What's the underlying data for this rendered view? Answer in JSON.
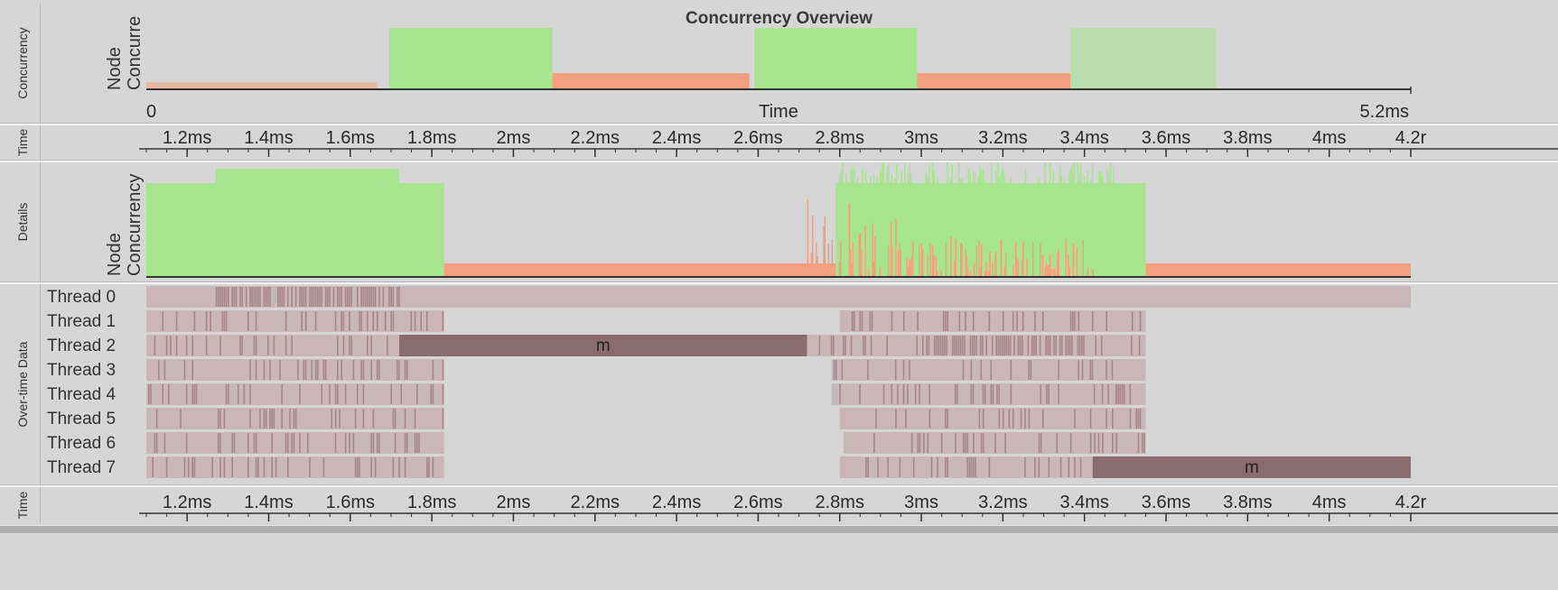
{
  "overview": {
    "side_label": "Concurrency",
    "title": "Concurrency Overview",
    "ylabel_1": "Node",
    "ylabel_2": "Concurre",
    "axis_start": "0",
    "axis_label": "Time",
    "axis_end": "5.2ms"
  },
  "time_axis_top": {
    "side_label": "Time"
  },
  "details": {
    "side_label": "Details",
    "ylabel_1": "Node",
    "ylabel_2": "Concurrency"
  },
  "threads_section": {
    "side_label": "Over-time Data",
    "threads": [
      "Thread 0",
      "Thread 1",
      "Thread 2",
      "Thread 3",
      "Thread 4",
      "Thread 5",
      "Thread 6",
      "Thread 7"
    ],
    "block_label": "m"
  },
  "time_axis_bottom": {
    "side_label": "Time"
  },
  "colors": {
    "green": "#a8e58f",
    "orange": "#f4a080",
    "thread_bg": "#c9b6b9",
    "thread_dark": "#8a6b70",
    "thread_mark": "#a7868b",
    "background": "#d6d6d6"
  },
  "chart_data": [
    {
      "type": "area",
      "name": "overview",
      "x_range_ms": [
        0,
        5.2
      ],
      "xlabel": "Time",
      "ylabel": "Node Concurrency",
      "series": [
        {
          "color": "green",
          "segments_ms": [
            [
              1.0,
              1.67
            ],
            [
              2.5,
              3.17
            ],
            [
              3.8,
              4.4
            ]
          ]
        },
        {
          "color": "orange",
          "segments_ms": [
            [
              0.0,
              0.95
            ],
            [
              1.67,
              2.48
            ],
            [
              3.17,
              3.8
            ]
          ]
        }
      ]
    },
    {
      "type": "axis",
      "name": "time-axis",
      "ticks": [
        "1.2ms",
        "1.4ms",
        "1.6ms",
        "1.8ms",
        "2ms",
        "2.2ms",
        "2.4ms",
        "2.6ms",
        "2.8ms",
        "3ms",
        "3.2ms",
        "3.4ms",
        "3.6ms",
        "3.8ms",
        "4ms",
        "4.2r"
      ],
      "tick_values_ms": [
        1.2,
        1.4,
        1.6,
        1.8,
        2.0,
        2.2,
        2.4,
        2.6,
        2.8,
        3.0,
        3.2,
        3.4,
        3.6,
        3.8,
        4.0,
        4.2
      ],
      "range_ms": [
        1.1,
        4.2
      ]
    },
    {
      "type": "area",
      "name": "details",
      "x_range_ms": [
        1.1,
        4.2
      ],
      "ylabel": "Node Concurrency",
      "series": [
        {
          "color": "green",
          "segments_ms": [
            [
              1.1,
              1.83
            ],
            [
              2.79,
              3.55
            ]
          ]
        },
        {
          "color": "orange",
          "segments_ms": [
            [
              1.83,
              2.79
            ],
            [
              3.55,
              4.2
            ]
          ]
        }
      ]
    },
    {
      "type": "gantt",
      "name": "threads",
      "x_range_ms": [
        1.1,
        4.2
      ],
      "rows": [
        {
          "thread": "Thread 0",
          "active_ms": [
            [
              1.1,
              4.2
            ]
          ]
        },
        {
          "thread": "Thread 1",
          "active_ms": [
            [
              1.1,
              1.83
            ],
            [
              2.8,
              3.55
            ]
          ]
        },
        {
          "thread": "Thread 2",
          "active_ms": [
            [
              1.1,
              1.72
            ],
            [
              2.72,
              3.55
            ]
          ],
          "blocks": [
            {
              "label": "m",
              "ms": [
                1.72,
                2.72
              ]
            }
          ]
        },
        {
          "thread": "Thread 3",
          "active_ms": [
            [
              1.1,
              1.83
            ],
            [
              2.78,
              3.55
            ]
          ]
        },
        {
          "thread": "Thread 4",
          "active_ms": [
            [
              1.1,
              1.83
            ],
            [
              2.78,
              3.55
            ]
          ]
        },
        {
          "thread": "Thread 5",
          "active_ms": [
            [
              1.1,
              1.83
            ],
            [
              2.8,
              3.55
            ]
          ]
        },
        {
          "thread": "Thread 6",
          "active_ms": [
            [
              1.1,
              1.83
            ],
            [
              2.81,
              3.55
            ]
          ]
        },
        {
          "thread": "Thread 7",
          "active_ms": [
            [
              1.1,
              1.83
            ],
            [
              2.8,
              3.42
            ]
          ],
          "blocks": [
            {
              "label": "m",
              "ms": [
                3.42,
                4.2
              ]
            }
          ]
        }
      ]
    }
  ]
}
